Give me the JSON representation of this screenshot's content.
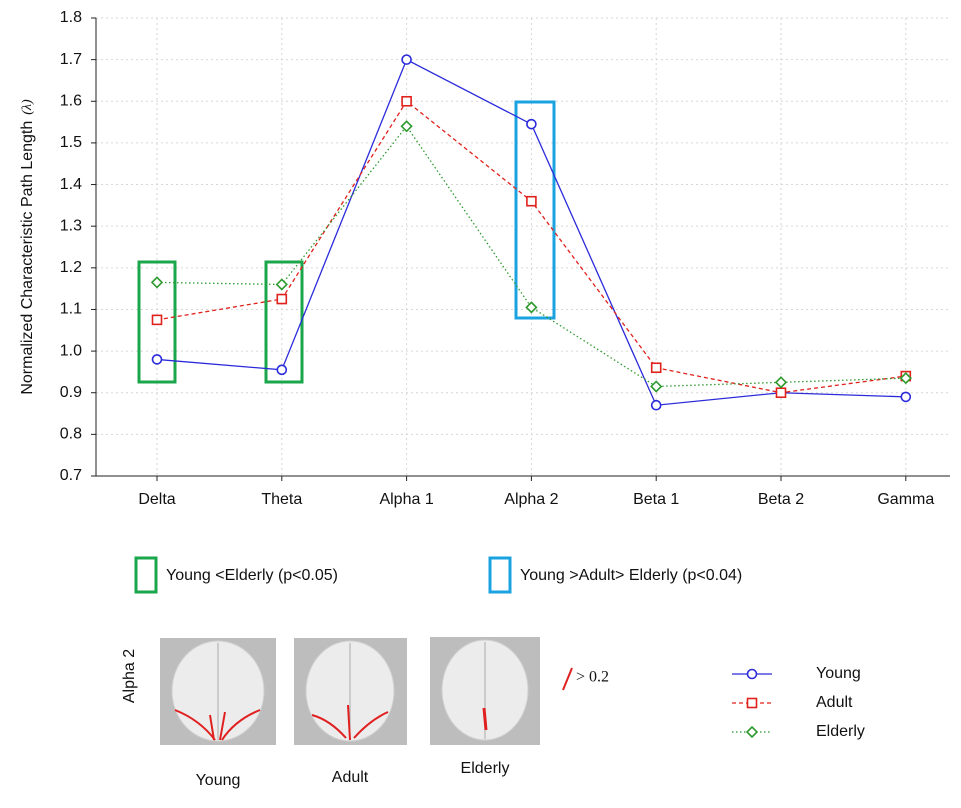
{
  "chart_data": {
    "type": "line",
    "y_label": "Normalized Characteristic Path Length",
    "y_label_symbol": "(λ)",
    "categories": [
      "Delta",
      "Theta",
      "Alpha 1",
      "Alpha 2",
      "Beta 1",
      "Beta 2",
      "Gamma"
    ],
    "series": [
      {
        "name": "Young",
        "color": "#2b2bdb",
        "marker": "circle",
        "dash": "solid",
        "values": [
          0.98,
          0.955,
          1.7,
          1.545,
          0.87,
          0.9,
          0.89
        ]
      },
      {
        "name": "Adult",
        "color": "#e0201b",
        "marker": "square",
        "dash": "dashed",
        "values": [
          1.075,
          1.125,
          1.6,
          1.36,
          0.96,
          0.9,
          0.94
        ]
      },
      {
        "name": "Elderly",
        "color": "#2e9a2e",
        "marker": "diamond",
        "dash": "dotted",
        "values": [
          1.165,
          1.16,
          1.54,
          1.105,
          0.915,
          0.925,
          0.935
        ]
      }
    ],
    "ylim": [
      0.7,
      1.8
    ],
    "yticks": [
      0.7,
      0.8,
      0.9,
      {
        "value": 1,
        "label": "1.0"
      },
      1.1,
      1.2,
      1.3,
      1.4,
      1.5,
      1.6,
      1.7,
      1.8
    ],
    "grid": true,
    "annotations": [
      {
        "text": "Young <Elderly (p<0.05)",
        "color": "#1aa64a"
      },
      {
        "text": "Young >Adult> Elderly (p<0.04)",
        "color": "#1aa3e0"
      }
    ],
    "inset": {
      "band": "Alpha 2",
      "groups": [
        "Young",
        "Adult",
        "Elderly"
      ],
      "threshold": "> 0.2"
    }
  }
}
